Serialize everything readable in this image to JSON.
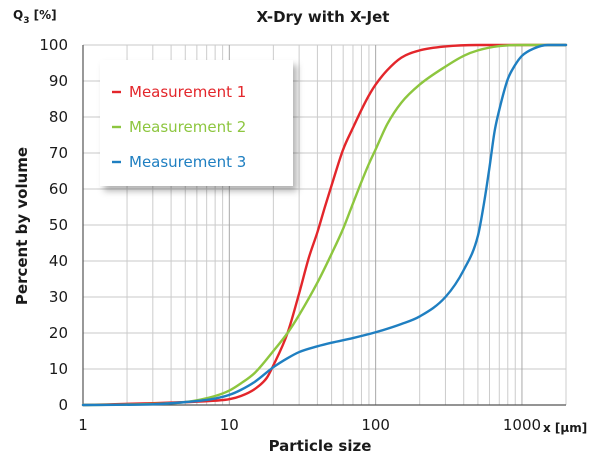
{
  "chart_data": {
    "type": "line",
    "title": "X-Dry with X-Jet",
    "xlabel": "Particle size",
    "ylabel": "Percent by volume",
    "x_unit": "x [µm]",
    "y_unit_main": "Q",
    "y_unit_sub": "3",
    "y_unit_rest": " [%]",
    "x_scale": "log",
    "xlim": [
      1,
      2000
    ],
    "ylim": [
      0,
      100
    ],
    "x_ticks": [
      {
        "value": 1,
        "label": "1"
      },
      {
        "value": 10,
        "label": "10"
      },
      {
        "value": 100,
        "label": "100"
      },
      {
        "value": 1000,
        "label": "1000"
      }
    ],
    "y_ticks": [
      {
        "value": 0,
        "label": "0"
      },
      {
        "value": 10,
        "label": "10"
      },
      {
        "value": 20,
        "label": "20"
      },
      {
        "value": 30,
        "label": "30"
      },
      {
        "value": 40,
        "label": "40"
      },
      {
        "value": 50,
        "label": "50"
      },
      {
        "value": 60,
        "label": "60"
      },
      {
        "value": 70,
        "label": "70"
      },
      {
        "value": 80,
        "label": "80"
      },
      {
        "value": 90,
        "label": "90"
      },
      {
        "value": 100,
        "label": "100"
      }
    ],
    "grid": true,
    "legend_position": "top-left",
    "series": [
      {
        "name": "Measurement 1",
        "color": "#e3262b",
        "x": [
          1,
          3,
          5,
          8,
          10,
          12,
          15,
          18,
          20,
          25,
          30,
          35,
          40,
          45,
          50,
          60,
          70,
          80,
          90,
          100,
          120,
          150,
          200,
          300,
          500,
          1000,
          2000
        ],
        "y": [
          0,
          0.5,
          0.8,
          1.2,
          1.6,
          2.5,
          4.5,
          7.5,
          11,
          20,
          31,
          41,
          48,
          55,
          61,
          71,
          77,
          82,
          86,
          89,
          93,
          96.5,
          98.5,
          99.6,
          100,
          100,
          100
        ]
      },
      {
        "name": "Measurement 2",
        "color": "#8dc63f",
        "x": [
          1,
          3,
          5,
          8,
          10,
          12,
          15,
          20,
          25,
          30,
          40,
          50,
          60,
          70,
          80,
          90,
          100,
          120,
          150,
          200,
          300,
          400,
          500,
          700,
          1000,
          2000
        ],
        "y": [
          0,
          0.3,
          0.8,
          2.5,
          4,
          6,
          9,
          15,
          20,
          25,
          34,
          42,
          49,
          56,
          62,
          67,
          71,
          78,
          84,
          89,
          94,
          97,
          98.5,
          99.7,
          100,
          100
        ]
      },
      {
        "name": "Measurement 3",
        "color": "#1f7fc1",
        "x": [
          1,
          3,
          5,
          8,
          10,
          12,
          15,
          20,
          25,
          30,
          40,
          50,
          70,
          100,
          150,
          200,
          300,
          400,
          500,
          550,
          600,
          650,
          700,
          800,
          900,
          1000,
          1200,
          1500,
          2000
        ],
        "y": [
          0,
          0.2,
          0.8,
          1.8,
          2.8,
          4.2,
          6.5,
          10.5,
          13,
          14.7,
          16.3,
          17.3,
          18.6,
          20.2,
          22.5,
          24.6,
          30,
          37.5,
          47,
          56,
          66,
          76,
          82,
          90.5,
          94.5,
          97,
          99,
          100,
          100
        ]
      }
    ]
  }
}
